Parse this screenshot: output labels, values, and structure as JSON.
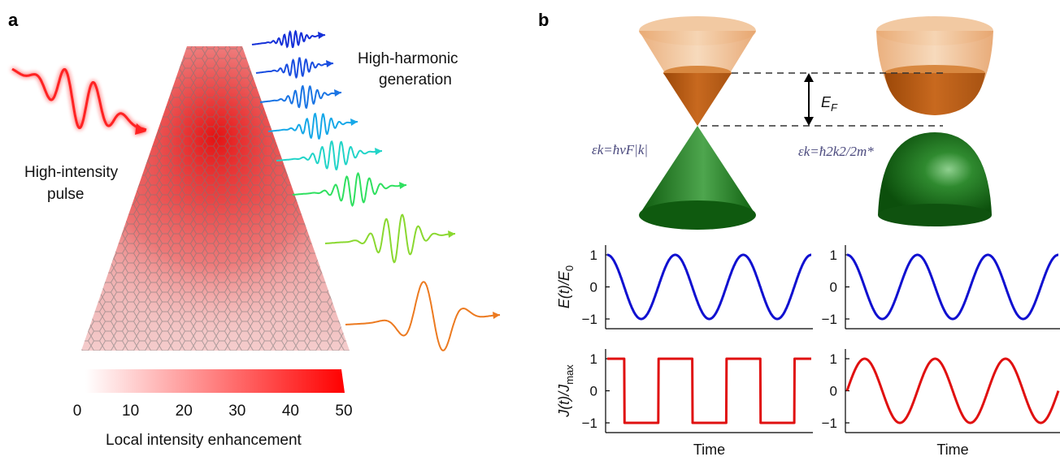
{
  "panels": {
    "a": "a",
    "b": "b"
  },
  "panel_a": {
    "pulse_label_line1": "High-intensity",
    "pulse_label_line2": "pulse",
    "hhg_label_line1": "High-harmonic",
    "hhg_label_line2": "generation",
    "colorbar_label": "Local intensity enhancement",
    "colorbar_ticks": [
      "0",
      "10",
      "20",
      "30",
      "40",
      "50"
    ],
    "colorbar_range": [
      0,
      50
    ],
    "colors": {
      "pulse": "#ff2020",
      "enhancement": "#ff0000"
    }
  },
  "panel_b": {
    "fermi_label": "E",
    "fermi_sub": "F",
    "dirac_formula": "εk=ħvF|k|",
    "parabolic_formula": "εk=ħ2k2/2m*",
    "colors": {
      "conduction": "#e9a36b",
      "filled": "#b55a12",
      "valence": "#1f7a1f",
      "field": "#1010d0",
      "current": "#e01010"
    }
  },
  "chart_data": [
    {
      "type": "line",
      "title": "",
      "xlabel": "",
      "ylabel": "E(t)/E0",
      "ylim": [
        -1,
        1
      ],
      "yticks": [
        "1",
        "0",
        "−1"
      ],
      "series": [
        {
          "shape": "cosine",
          "cycles": 3
        }
      ]
    },
    {
      "type": "line",
      "title": "",
      "xlabel": "",
      "ylabel": "",
      "ylim": [
        -1,
        1
      ],
      "yticks": [
        "1",
        "0",
        "−1"
      ],
      "series": [
        {
          "shape": "cosine",
          "cycles": 3
        }
      ]
    },
    {
      "type": "line",
      "title": "",
      "xlabel": "Time",
      "ylabel": "J(t)/Jmax",
      "ylim": [
        -1,
        1
      ],
      "yticks": [
        "1",
        "0",
        "−1"
      ],
      "series": [
        {
          "shape": "square",
          "cycles": 3
        }
      ]
    },
    {
      "type": "line",
      "title": "",
      "xlabel": "Time",
      "ylabel": "",
      "ylim": [
        -1,
        1
      ],
      "yticks": [
        "1",
        "0",
        "−1"
      ],
      "series": [
        {
          "shape": "sine",
          "cycles": 3
        }
      ]
    }
  ]
}
